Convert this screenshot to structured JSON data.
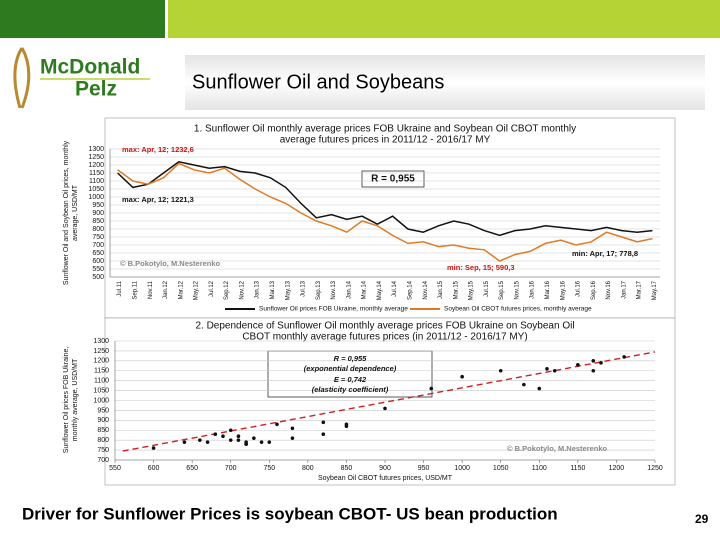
{
  "header": {
    "logo": [
      "McDonald",
      "Pelz"
    ],
    "title": "Sunflower Oil and Soybeans"
  },
  "chart_data": [
    {
      "type": "line",
      "title": [
        "1. Sunflower Oil monthly average prices FOB Ukraine and Soybean Oil CBOT monthly",
        "average futures prices in 2011/12 - 2016/17 MY"
      ],
      "y_label": [
        "Sunflower Oil and Soybean Oil prices, monthly",
        "average, USD/MT"
      ],
      "categories": [
        "Jul.11",
        "Sep.11",
        "Nov.11",
        "Jan.12",
        "Mar.12",
        "May.12",
        "Jul.12",
        "Sep.12",
        "Nov.12",
        "Jan.13",
        "Mar.13",
        "May.13",
        "Jul.13",
        "Sep.13",
        "Nov.13",
        "Jan.14",
        "Mar.14",
        "May.14",
        "Jul.14",
        "Sep.14",
        "Nov.14",
        "Jan.15",
        "Mar.15",
        "May.15",
        "Jul.15",
        "Sep.15",
        "Nov.15",
        "Jan.16",
        "Mar.16",
        "May.16",
        "Jul.16",
        "Sep.16",
        "Nov.16",
        "Jan.17",
        "Mar.17",
        "May.17"
      ],
      "series": [
        {
          "name": "Sunflower Oil prices FOB Ukraine, monthly average",
          "color": "#111111",
          "values": [
            1150,
            1060,
            1080,
            1150,
            1220,
            1200,
            1180,
            1190,
            1160,
            1150,
            1120,
            1060,
            960,
            870,
            890,
            860,
            880,
            830,
            880,
            800,
            780,
            820,
            850,
            830,
            790,
            760,
            790,
            800,
            820,
            810,
            800,
            790,
            810,
            790,
            780,
            790
          ]
        },
        {
          "name": "Soybean Oil CBOT futures prices, monthly average",
          "color": "#e07b24",
          "values": [
            1170,
            1100,
            1080,
            1120,
            1210,
            1170,
            1150,
            1180,
            1110,
            1050,
            1000,
            960,
            900,
            850,
            820,
            780,
            850,
            820,
            760,
            710,
            720,
            690,
            700,
            680,
            670,
            600,
            640,
            660,
            710,
            730,
            700,
            720,
            780,
            750,
            720,
            740
          ]
        }
      ],
      "ylim": [
        500,
        1300
      ],
      "yticks": [
        500,
        550,
        600,
        650,
        700,
        750,
        800,
        850,
        900,
        950,
        1000,
        1050,
        1100,
        1150,
        1200,
        1250,
        1300
      ],
      "grid": true,
      "annotations": [
        {
          "text": "max: Apr, 12; 1232,6",
          "color": "#d01010"
        },
        {
          "text": "max: Apr, 12; 1221,3",
          "color": "#111111"
        },
        {
          "text": "R = 0,955",
          "color": "#111111"
        },
        {
          "text": "min: Apr, 17; 778,8",
          "color": "#111111"
        },
        {
          "text": "min: Sep, 15; 590,3",
          "color": "#d01010"
        },
        {
          "text": "© B.Pokotylo, M.Nesterenko",
          "color": "#888888"
        }
      ]
    },
    {
      "type": "scatter",
      "title": [
        "2. Dependence of Sunflower Oil monthly average prices FOB Ukraine on Soybean Oil",
        "CBOT monthly average futures prices (in 2011/12 - 2016/17 MY)"
      ],
      "x_label": "Soybean Oil CBOT futures prices, USD/MT",
      "y_label": [
        "Sunflower Oil prices FOB Ukraine,",
        "monthly average, USD/MT"
      ],
      "x": [
        1170,
        1100,
        1080,
        1120,
        1210,
        1170,
        1150,
        1180,
        1110,
        1050,
        1000,
        960,
        900,
        850,
        820,
        780,
        850,
        820,
        760,
        710,
        720,
        690,
        700,
        680,
        670,
        600,
        640,
        660,
        710,
        730,
        700,
        720,
        780,
        750,
        720,
        740
      ],
      "y": [
        1150,
        1060,
        1080,
        1150,
        1220,
        1200,
        1180,
        1190,
        1160,
        1150,
        1120,
        1060,
        960,
        870,
        890,
        860,
        880,
        830,
        880,
        800,
        780,
        820,
        850,
        830,
        790,
        760,
        790,
        800,
        820,
        810,
        800,
        790,
        810,
        790,
        780,
        790
      ],
      "color": "#111111",
      "trendline": {
        "color": "#d02020",
        "x": [
          560,
          1250
        ],
        "y": [
          745,
          1245
        ]
      },
      "xlim": [
        550,
        1250
      ],
      "xticks": [
        550,
        600,
        650,
        700,
        750,
        800,
        850,
        900,
        950,
        1000,
        1050,
        1100,
        1150,
        1200,
        1250
      ],
      "ylim": [
        700,
        1300
      ],
      "yticks": [
        700,
        750,
        800,
        850,
        900,
        950,
        1000,
        1050,
        1100,
        1150,
        1200,
        1250,
        1300
      ],
      "grid": true,
      "annotations": [
        {
          "text": "R = 0,955",
          "color": "#111111"
        },
        {
          "text": "(exponential dependence)",
          "color": "#111111"
        },
        {
          "text": "E = 0,742",
          "color": "#111111"
        },
        {
          "text": "(elasticity coefficient)",
          "color": "#111111"
        },
        {
          "text": "© B.Pokotylo, M.Nesterenko",
          "color": "#888888"
        }
      ]
    }
  ],
  "footer": {
    "caption": "Driver for Sunflower Prices is soybean CBOT- US bean production",
    "page": 29
  }
}
